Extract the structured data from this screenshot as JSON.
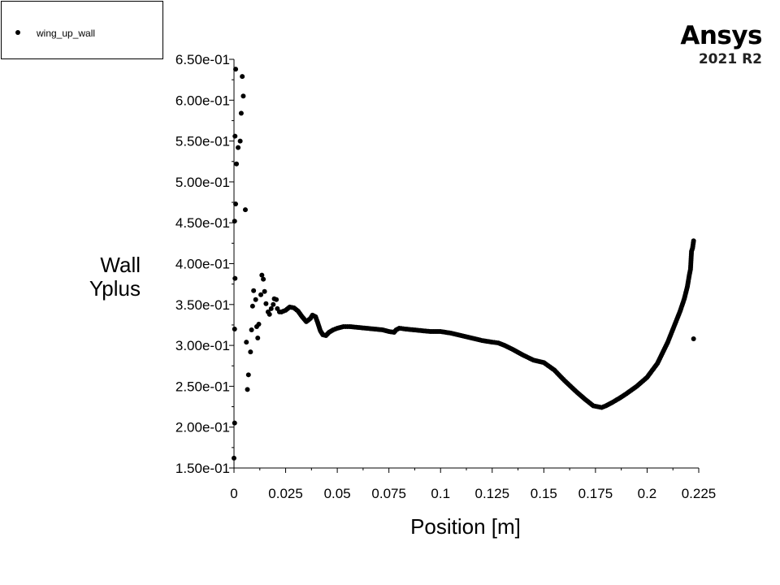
{
  "legend": {
    "label": "wing_up_wall"
  },
  "brand": {
    "name": "Ansys",
    "version": "2021 R2"
  },
  "chart_data": {
    "type": "scatter",
    "xlabel": "Position [m]",
    "ylabel_lines": [
      "Wall",
      "Yplus"
    ],
    "xlim": [
      0,
      0.225
    ],
    "ylim": [
      0.15,
      0.65
    ],
    "x_ticks": [
      0,
      0.025,
      0.05,
      0.075,
      0.1,
      0.125,
      0.15,
      0.175,
      0.2,
      0.225
    ],
    "x_tick_labels": [
      "0",
      "0.025",
      "0.05",
      "0.075",
      "0.1",
      "0.125",
      "0.15",
      "0.175",
      "0.2",
      "0.225"
    ],
    "y_ticks": [
      0.15,
      0.2,
      0.25,
      0.3,
      0.35,
      0.4,
      0.45,
      0.5,
      0.55,
      0.6,
      0.65
    ],
    "y_tick_labels": [
      "1.50e-01",
      "2.00e-01",
      "2.50e-01",
      "3.00e-01",
      "3.50e-01",
      "4.00e-01",
      "4.50e-01",
      "5.00e-01",
      "5.50e-01",
      "6.00e-01",
      "6.50e-01"
    ],
    "grid": false,
    "legend_position": "top-left",
    "series": [
      {
        "name": "wing_up_wall",
        "color": "#000000",
        "scatter_points": [
          [
            0.0,
            0.162
          ],
          [
            0.0003,
            0.205
          ],
          [
            0.0003,
            0.32
          ],
          [
            0.0005,
            0.382
          ],
          [
            0.0003,
            0.452
          ],
          [
            0.0008,
            0.473
          ],
          [
            0.0005,
            0.556
          ],
          [
            0.0008,
            0.638
          ],
          [
            0.0012,
            0.522
          ],
          [
            0.002,
            0.542
          ],
          [
            0.003,
            0.55
          ],
          [
            0.0035,
            0.584
          ],
          [
            0.004,
            0.629
          ],
          [
            0.0045,
            0.605
          ],
          [
            0.0055,
            0.466
          ],
          [
            0.006,
            0.304
          ],
          [
            0.0065,
            0.246
          ],
          [
            0.007,
            0.264
          ],
          [
            0.008,
            0.292
          ],
          [
            0.0085,
            0.319
          ],
          [
            0.009,
            0.348
          ],
          [
            0.0095,
            0.367
          ],
          [
            0.0105,
            0.356
          ],
          [
            0.011,
            0.323
          ],
          [
            0.0115,
            0.309
          ],
          [
            0.012,
            0.326
          ],
          [
            0.013,
            0.362
          ],
          [
            0.0135,
            0.386
          ],
          [
            0.0142,
            0.381
          ],
          [
            0.0148,
            0.366
          ],
          [
            0.0155,
            0.351
          ],
          [
            0.0165,
            0.341
          ],
          [
            0.0172,
            0.338
          ],
          [
            0.018,
            0.345
          ],
          [
            0.019,
            0.35
          ],
          [
            0.0195,
            0.357
          ],
          [
            0.0205,
            0.356
          ],
          [
            0.021,
            0.345
          ],
          [
            0.022,
            0.341
          ],
          [
            0.023,
            0.341
          ]
        ],
        "curve_points": [
          [
            0.023,
            0.341
          ],
          [
            0.025,
            0.343
          ],
          [
            0.027,
            0.347
          ],
          [
            0.029,
            0.346
          ],
          [
            0.031,
            0.342
          ],
          [
            0.033,
            0.335
          ],
          [
            0.035,
            0.329
          ],
          [
            0.037,
            0.333
          ],
          [
            0.038,
            0.337
          ],
          [
            0.0395,
            0.335
          ],
          [
            0.0405,
            0.328
          ],
          [
            0.0418,
            0.318
          ],
          [
            0.043,
            0.313
          ],
          [
            0.0445,
            0.312
          ],
          [
            0.046,
            0.316
          ],
          [
            0.048,
            0.319
          ],
          [
            0.05,
            0.321
          ],
          [
            0.053,
            0.323
          ],
          [
            0.056,
            0.323
          ],
          [
            0.06,
            0.322
          ],
          [
            0.064,
            0.321
          ],
          [
            0.068,
            0.32
          ],
          [
            0.072,
            0.319
          ],
          [
            0.075,
            0.317
          ],
          [
            0.0775,
            0.316
          ],
          [
            0.0785,
            0.319
          ],
          [
            0.08,
            0.321
          ],
          [
            0.083,
            0.32
          ],
          [
            0.087,
            0.319
          ],
          [
            0.091,
            0.318
          ],
          [
            0.095,
            0.317
          ],
          [
            0.1,
            0.317
          ],
          [
            0.105,
            0.315
          ],
          [
            0.11,
            0.312
          ],
          [
            0.115,
            0.309
          ],
          [
            0.12,
            0.306
          ],
          [
            0.125,
            0.304
          ],
          [
            0.128,
            0.303
          ],
          [
            0.131,
            0.3
          ],
          [
            0.135,
            0.295
          ],
          [
            0.14,
            0.288
          ],
          [
            0.145,
            0.282
          ],
          [
            0.15,
            0.279
          ],
          [
            0.155,
            0.27
          ],
          [
            0.16,
            0.257
          ],
          [
            0.165,
            0.245
          ],
          [
            0.17,
            0.234
          ],
          [
            0.174,
            0.226
          ],
          [
            0.176,
            0.225
          ],
          [
            0.178,
            0.224
          ],
          [
            0.18,
            0.226
          ],
          [
            0.183,
            0.23
          ],
          [
            0.187,
            0.236
          ],
          [
            0.19,
            0.241
          ],
          [
            0.195,
            0.25
          ],
          [
            0.2,
            0.261
          ],
          [
            0.205,
            0.278
          ],
          [
            0.21,
            0.304
          ],
          [
            0.213,
            0.323
          ],
          [
            0.216,
            0.342
          ],
          [
            0.218,
            0.357
          ],
          [
            0.2195,
            0.372
          ],
          [
            0.2205,
            0.387
          ],
          [
            0.221,
            0.393
          ],
          [
            0.2215,
            0.415
          ],
          [
            0.222,
            0.419
          ],
          [
            0.2225,
            0.428
          ]
        ],
        "outlier_points": [
          [
            0.2225,
            0.308
          ]
        ]
      }
    ]
  }
}
